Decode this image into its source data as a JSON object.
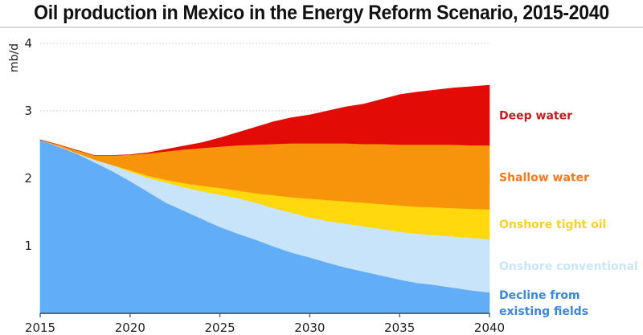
{
  "chart_data": {
    "type": "area",
    "stacked": true,
    "title": "Oil production in Mexico in the Energy Reform Scenario, 2015-2040",
    "xlabel": "",
    "ylabel": "mb/d",
    "xlim": [
      2015,
      2040
    ],
    "ylim": [
      0,
      4
    ],
    "grid": true,
    "x_ticks": [
      "2015",
      "2020",
      "2025",
      "2030",
      "2035",
      "2040"
    ],
    "y_ticks": [
      "1",
      "2",
      "3",
      "4"
    ],
    "legend_placement": "right (inline labels)",
    "x": [
      2015,
      2016,
      2017,
      2018,
      2019,
      2020,
      2021,
      2022,
      2023,
      2024,
      2025,
      2026,
      2027,
      2028,
      2029,
      2030,
      2031,
      2032,
      2033,
      2034,
      2035,
      2036,
      2037,
      2038,
      2039,
      2040
    ],
    "series": [
      {
        "name": "Decline from existing fields",
        "label_lines": [
          "Decline from",
          "existing fields"
        ],
        "color": "#62adf7",
        "label_color": "#3b86e0",
        "values": [
          2.57,
          2.47,
          2.37,
          2.24,
          2.11,
          1.96,
          1.8,
          1.64,
          1.52,
          1.4,
          1.28,
          1.18,
          1.09,
          0.99,
          0.9,
          0.83,
          0.75,
          0.68,
          0.62,
          0.56,
          0.5,
          0.45,
          0.42,
          0.38,
          0.34,
          0.31
        ]
      },
      {
        "name": "Onshore conventional",
        "label_lines": [
          "Onshore conventional"
        ],
        "color": "#c7e4fb",
        "label_color": "#c9e5f9",
        "values": [
          0.0,
          0.01,
          0.01,
          0.04,
          0.09,
          0.14,
          0.21,
          0.3,
          0.35,
          0.41,
          0.48,
          0.53,
          0.55,
          0.57,
          0.59,
          0.59,
          0.62,
          0.65,
          0.67,
          0.69,
          0.71,
          0.73,
          0.74,
          0.76,
          0.78,
          0.79
        ]
      },
      {
        "name": "Onshore tight oil",
        "label_lines": [
          "Onshore tight oil"
        ],
        "color": "#ffd80e",
        "label_color": "#f5d322",
        "values": [
          0.0,
          0.0,
          0.0,
          0.0,
          0.0,
          0.02,
          0.03,
          0.04,
          0.06,
          0.08,
          0.1,
          0.11,
          0.14,
          0.19,
          0.23,
          0.28,
          0.31,
          0.33,
          0.35,
          0.37,
          0.39,
          0.4,
          0.41,
          0.42,
          0.43,
          0.44
        ]
      },
      {
        "name": "Shallow water",
        "label_lines": [
          "Shallow water"
        ],
        "color": "#f7940b",
        "label_color": "#ee7a22",
        "values": [
          0.0,
          0.02,
          0.04,
          0.06,
          0.14,
          0.23,
          0.33,
          0.42,
          0.5,
          0.56,
          0.61,
          0.67,
          0.72,
          0.76,
          0.8,
          0.82,
          0.84,
          0.86,
          0.87,
          0.89,
          0.9,
          0.92,
          0.93,
          0.94,
          0.94,
          0.95
        ]
      },
      {
        "name": "Deep water",
        "label_lines": [
          "Deep water"
        ],
        "color": "#e20b06",
        "label_color": "#c0211f",
        "values": [
          0.0,
          0.0,
          0.0,
          0.0,
          0.0,
          0.0,
          0.01,
          0.03,
          0.05,
          0.08,
          0.13,
          0.19,
          0.26,
          0.33,
          0.38,
          0.42,
          0.48,
          0.54,
          0.59,
          0.66,
          0.74,
          0.78,
          0.81,
          0.84,
          0.87,
          0.89
        ]
      }
    ]
  }
}
